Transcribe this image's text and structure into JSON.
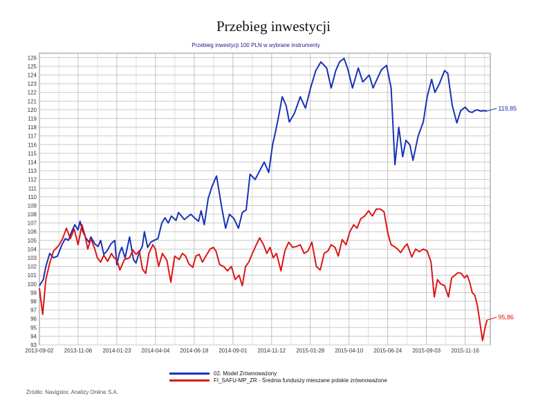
{
  "title": "Przebieg inwestycji",
  "source": "Źródło: Navigstor, Analizy Online S.A.",
  "chart_data": {
    "type": "line",
    "title": "Przebieg inwestycji 100 PLN w wybrane instrumenty",
    "ylim": [
      93,
      126.5
    ],
    "yticks": [
      93,
      94,
      95,
      96,
      97,
      98,
      99,
      100,
      101,
      102,
      103,
      104,
      105,
      106,
      107,
      108,
      109,
      110,
      111,
      112,
      113,
      114,
      115,
      116,
      117,
      118,
      119,
      120,
      121,
      122,
      123,
      124,
      125,
      126
    ],
    "xticks": [
      "2013-09-02",
      "2013-11-06",
      "2014-01-23",
      "2014-04-04",
      "2014-06-18",
      "2014-09-01",
      "2014-11-12",
      "2015-01-28",
      "2015-04-10",
      "2015-06-24",
      "2015-09-03",
      "2015-11-16"
    ],
    "grid": true,
    "series": [
      {
        "name": "02. Model Zrównoważony",
        "color": "#1432b4",
        "end_label": "119,85",
        "x": [
          0,
          0.6,
          1,
          1.6,
          2.2,
          2.8,
          3.5,
          4,
          4.5,
          5,
          5.5,
          6,
          6.3,
          6.7,
          7.2,
          7.7,
          8,
          8.6,
          9.1,
          9.5,
          10,
          10.5,
          11.1,
          11.7,
          12,
          12.4,
          12.8,
          13.3,
          14,
          14.6,
          15,
          15.4,
          16,
          16.3,
          16.8,
          17.3,
          17.8,
          18.4,
          19,
          19.5,
          20,
          20.5,
          21.2,
          21.6,
          22.5,
          23.5,
          24.2,
          24.7,
          25.1,
          25.6,
          26.2,
          26.8,
          27.5,
          28.3,
          28.9,
          29.5,
          30.2,
          30.9,
          31.5,
          32.1,
          32.7,
          33.5,
          34.2,
          34.9,
          35.6,
          36.2,
          36.7,
          37.2,
          37.7,
          38.3,
          38.8,
          39.6,
          40.5,
          41.3,
          42.1,
          42.9,
          43.7,
          44.6,
          45.3,
          46,
          46.6,
          47.3,
          47.9,
          48.6,
          49.5,
          50.2,
          51.2,
          51.8,
          52.4,
          53.1,
          53.9,
          54.6,
          55.2,
          55.8,
          56.4,
          56.9,
          57.5,
          58,
          58.8,
          59.6,
          60.2,
          60.9,
          61.4,
          62.1,
          62.9,
          63.4,
          64.1,
          64.8,
          65.4,
          66.1,
          66.7,
          67.2,
          67.6,
          68,
          68.5,
          69,
          69.5
        ],
        "y": [
          99.8,
          100.5,
          102,
          103.5,
          103,
          103.2,
          104.5,
          105.2,
          105,
          106,
          106.8,
          106.2,
          107.2,
          106.1,
          105.3,
          104.8,
          105.4,
          104.6,
          104.3,
          105,
          103.4,
          103.8,
          104.6,
          105,
          102.2,
          103.5,
          104.2,
          103,
          105.4,
          102.8,
          102.4,
          103.4,
          104.4,
          106,
          104.2,
          104.8,
          105,
          105.2,
          107,
          107.6,
          107,
          107.8,
          107.3,
          108.2,
          107.4,
          108,
          107.5,
          107.2,
          108.4,
          106.8,
          109.8,
          111.2,
          112.4,
          108.8,
          106.4,
          108,
          107.5,
          106.4,
          108.2,
          108.5,
          112.6,
          112,
          113,
          114,
          112.8,
          116,
          117.6,
          119.5,
          121.5,
          120.5,
          118.6,
          119.6,
          121.5,
          120.2,
          122.5,
          124.5,
          125.5,
          124.8,
          122.5,
          124.5,
          125.5,
          125.9,
          124.6,
          122.5,
          124.8,
          123.2,
          124,
          122.5,
          123.5,
          124.6,
          125.1,
          122.5,
          113.7,
          118,
          114.6,
          116.5,
          116,
          114.2,
          117,
          118.6,
          121.5,
          123.5,
          122,
          123,
          124.5,
          124.2,
          120.5,
          118.5,
          119.9,
          120.3,
          119.8,
          119.7,
          119.9,
          120,
          119.85,
          119.9,
          119.85
        ]
      },
      {
        "name": "FI_SAFU-MP_ZR - Średnia funduszy mieszane polskie zrównoważone",
        "color": "#dc1414",
        "end_label": "95,86",
        "x": [
          0,
          0.5,
          1,
          1.6,
          2.2,
          3,
          3.6,
          4.2,
          4.8,
          5.4,
          6,
          6.6,
          7.1,
          7.5,
          8,
          8.6,
          9,
          9.5,
          10,
          10.6,
          11.2,
          11.6,
          12,
          12.5,
          13.2,
          14,
          14.5,
          15,
          15.5,
          16,
          16.5,
          17,
          17.6,
          18,
          18.5,
          19.1,
          19.8,
          20.4,
          21,
          21.7,
          22.2,
          22.7,
          23.2,
          23.8,
          24.3,
          24.8,
          25.3,
          26,
          26.5,
          27,
          27.4,
          28,
          28.6,
          29.2,
          29.8,
          30.4,
          31,
          31.5,
          32,
          32.5,
          33,
          33.6,
          34.2,
          34.8,
          35.3,
          35.8,
          36.3,
          36.8,
          37.5,
          38.1,
          38.7,
          39.3,
          39.9,
          40.5,
          41.1,
          41.7,
          42.3,
          43,
          43.6,
          44.2,
          44.8,
          45.3,
          45.9,
          46.4,
          47,
          47.6,
          48.2,
          48.8,
          49.3,
          49.9,
          50.5,
          51.1,
          51.7,
          52.3,
          52.9,
          53.5,
          54.1,
          54.6,
          55.1,
          55.6,
          56.1,
          56.6,
          57.1,
          57.8,
          58.4,
          59,
          59.6,
          60.2,
          60.8,
          61.3,
          61.8,
          62.3,
          62.9,
          63.5,
          64,
          64.5,
          65,
          65.5,
          66,
          66.4,
          66.8,
          67.2,
          67.6,
          68,
          68.4,
          68.8,
          69.2,
          69.5
        ],
        "y": [
          99.5,
          96.5,
          100.5,
          102.4,
          103.8,
          104.4,
          105.2,
          106.4,
          105.2,
          106.3,
          104.5,
          106.8,
          105.5,
          104,
          105.2,
          104,
          103,
          102.5,
          103.3,
          102.6,
          103.5,
          103,
          102.8,
          101.6,
          102.8,
          103,
          103.9,
          103.4,
          103.8,
          101.7,
          101.2,
          103.5,
          104.5,
          104,
          102,
          103.5,
          102.7,
          100.2,
          103.2,
          102.8,
          103.5,
          103.2,
          102.3,
          101.9,
          103.2,
          103.4,
          102.5,
          103.4,
          104,
          104.2,
          103.8,
          102.2,
          102,
          101.5,
          102,
          100.5,
          101,
          99.8,
          102,
          102.5,
          103.4,
          104.4,
          105.3,
          104.5,
          103.5,
          104.2,
          103,
          103.5,
          101.5,
          103.8,
          104.8,
          104.2,
          104.3,
          104.5,
          103.5,
          103.8,
          104.8,
          102,
          101.6,
          103.5,
          103.8,
          104.5,
          104.2,
          103.2,
          105.1,
          104.5,
          106,
          106.8,
          106.4,
          107.5,
          107.8,
          108.4,
          107.8,
          108.6,
          108.6,
          108.3,
          105.8,
          104.5,
          104.3,
          104,
          103.6,
          104.2,
          104.6,
          103.1,
          104,
          103.7,
          104,
          103.8,
          102.5,
          98.5,
          100.5,
          100,
          99.8,
          98.5,
          100.7,
          101,
          101.3,
          101.2,
          100.7,
          101,
          100.2,
          99,
          98.7,
          97.5,
          95.5,
          93.5,
          95,
          95.86
        ]
      }
    ]
  }
}
